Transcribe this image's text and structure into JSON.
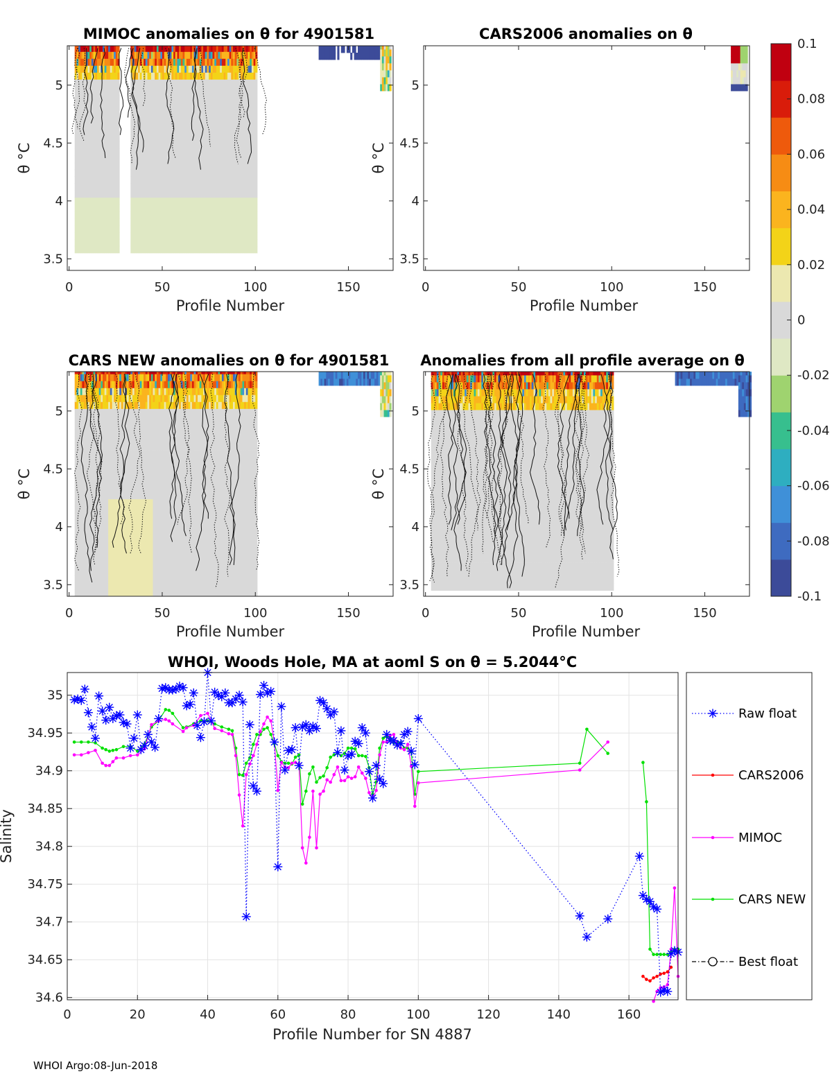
{
  "colors": {
    "raw_float": "#0000ff",
    "cars2006": "#ff0000",
    "mimoc": "#ff00ff",
    "cars_new": "#00e000",
    "best_float": "#000000",
    "colormap": [
      "#3c4b99",
      "#3e6bc0",
      "#3f90d8",
      "#2eaec0",
      "#37bf8e",
      "#9fd36f",
      "#dfe8c4",
      "#d9d9d9",
      "#ece8b0",
      "#f3d318",
      "#fbb41e",
      "#f68c14",
      "#ee5a0c",
      "#d91c0a",
      "#c00010"
    ]
  },
  "panels": [
    {
      "title": "MIMOC anomalies on θ  for 4901581",
      "xlabel": "Profile Number",
      "ylabel": "θ °C",
      "xticks": [
        "0",
        "50",
        "100",
        "150"
      ],
      "yticks": [
        "3.5",
        "4",
        "4.5",
        "5"
      ]
    },
    {
      "title": "CARS2006 anomalies on θ",
      "xlabel": "Profile Number",
      "ylabel": "θ °C",
      "xticks": [
        "0",
        "50",
        "100",
        "150"
      ],
      "yticks": [
        "3.5",
        "4",
        "4.5",
        "5"
      ]
    },
    {
      "title": "CARS NEW anomalies on θ for 4901581",
      "xlabel": "Profile Number",
      "ylabel": "θ °C",
      "xticks": [
        "0",
        "50",
        "100",
        "150"
      ],
      "yticks": [
        "3.5",
        "4",
        "4.5",
        "5"
      ]
    },
    {
      "title": "Anomalies from all profile average on θ",
      "xlabel": "Profile Number",
      "ylabel": "θ °C",
      "xticks": [
        "0",
        "50",
        "100",
        "150"
      ],
      "yticks": [
        "3.5",
        "4",
        "4.5",
        "5"
      ]
    }
  ],
  "colorbar": {
    "ticks": [
      "0.1",
      "0.08",
      "0.06",
      "0.04",
      "0.02",
      "0",
      "-0.02",
      "-0.04",
      "-0.06",
      "-0.08",
      "-0.1"
    ],
    "range": [
      -0.1,
      0.1
    ]
  },
  "footer": "WHOI Argo:08-Jun-2018",
  "chart_data": {
    "type": "line",
    "title_main": "WHOI, Woods Hole, MA at aoml S on θ = 5.2044",
    "title_unit": "°C",
    "xlabel": "Profile Number for SN 4887",
    "ylabel": "Salinity",
    "xlim": [
      0,
      174
    ],
    "ylim": [
      34.597,
      35.03
    ],
    "xticks": [
      0,
      20,
      40,
      60,
      80,
      100,
      120,
      140,
      160
    ],
    "yticks": [
      34.6,
      34.65,
      34.7,
      34.75,
      34.8,
      34.85,
      34.9,
      34.95,
      35
    ],
    "ytick_labels": [
      "34.6",
      "34.65",
      "34.7",
      "34.75",
      "34.8",
      "34.85",
      "34.9",
      "34.95",
      "35"
    ],
    "grid": true,
    "legend_position": "right-outside",
    "series": [
      {
        "name": "Raw float",
        "style": "dotted-star",
        "x": [
          2,
          3,
          4,
          5,
          6,
          7,
          8,
          9,
          10,
          11,
          12,
          13,
          14,
          15,
          16,
          17,
          18,
          19,
          20,
          21,
          22,
          23,
          24,
          25,
          26,
          27,
          28,
          29,
          30,
          31,
          32,
          33,
          34,
          35,
          36,
          37,
          38,
          39,
          40,
          41,
          42,
          43,
          44,
          45,
          46,
          47,
          48,
          49,
          50,
          51,
          52,
          53,
          54,
          55,
          56,
          57,
          58,
          59,
          60,
          61,
          62,
          63,
          64,
          65,
          66,
          67,
          68,
          69,
          70,
          71,
          72,
          73,
          74,
          75,
          76,
          77,
          78,
          79,
          80,
          81,
          82,
          83,
          84,
          85,
          86,
          87,
          88,
          89,
          90,
          91,
          92,
          93,
          94,
          95,
          96,
          97,
          98,
          99,
          100,
          146,
          148,
          154,
          163,
          164,
          165,
          166,
          167,
          168,
          169,
          170,
          171,
          172,
          173,
          174
        ],
        "y": [
          34.994,
          34.995,
          34.993,
          35.008,
          34.977,
          34.958,
          34.943,
          34.999,
          34.979,
          34.967,
          34.984,
          34.969,
          34.973,
          34.974,
          34.964,
          34.962,
          34.93,
          34.943,
          34.974,
          34.928,
          34.933,
          34.948,
          34.938,
          34.931,
          34.969,
          35.009,
          35.01,
          35.007,
          35.007,
          35.008,
          35.012,
          35.01,
          34.986,
          34.988,
          35.003,
          34.96,
          34.944,
          34.965,
          35.03,
          34.966,
          35.004,
          35.0,
          34.998,
          35.003,
          34.99,
          34.99,
          34.995,
          35.0,
          34.991,
          34.707,
          34.961,
          34.88,
          34.873,
          35.001,
          35.013,
          35.003,
          35.005,
          34.938,
          34.773,
          34.985,
          34.901,
          34.927,
          34.928,
          34.957,
          34.907,
          34.958,
          34.961,
          34.953,
          34.959,
          34.956,
          34.993,
          34.99,
          34.982,
          34.974,
          34.978,
          34.924,
          34.953,
          34.901,
          34.92,
          34.922,
          34.939,
          34.936,
          34.957,
          34.95,
          34.899,
          34.864,
          34.907,
          34.889,
          34.883,
          34.948,
          34.94,
          34.94,
          34.934,
          34.936,
          34.948,
          34.952,
          34.926,
          34.908,
          34.969,
          34.708,
          34.68,
          34.704,
          34.787,
          34.735,
          34.73,
          34.727,
          34.72,
          34.717,
          34.607,
          34.61,
          34.608,
          34.658,
          34.662,
          34.66
        ]
      },
      {
        "name": "CARS2006",
        "style": "solid-dot",
        "x": [
          164,
          165,
          166,
          167,
          168,
          169,
          170,
          171,
          172
        ],
        "y": [
          34.628,
          34.624,
          34.622,
          34.626,
          34.628,
          34.631,
          34.632,
          34.634,
          34.64
        ]
      },
      {
        "name": "MIMOC",
        "style": "solid-dot",
        "x": [
          2,
          4,
          6,
          8,
          10,
          11,
          12,
          13,
          14,
          16,
          18,
          20,
          22,
          24,
          26,
          28,
          29,
          30,
          33,
          34,
          36,
          38,
          40,
          42,
          44,
          46,
          47,
          48,
          49,
          50,
          51,
          52,
          53,
          54,
          55,
          56,
          57,
          58,
          59,
          60,
          61,
          62,
          63,
          64,
          65,
          66,
          67,
          68,
          69,
          70,
          71,
          72,
          73,
          74,
          75,
          76,
          77,
          78,
          79,
          80,
          81,
          82,
          83,
          84,
          85,
          86,
          87,
          88,
          89,
          90,
          91,
          92,
          93,
          94,
          95,
          96,
          97,
          98,
          99,
          100,
          146,
          154,
          null,
          167,
          168,
          169,
          170,
          171,
          172,
          173,
          174
        ],
        "y": [
          34.921,
          34.921,
          34.924,
          34.927,
          34.91,
          34.907,
          34.907,
          34.912,
          34.917,
          34.917,
          34.92,
          34.921,
          34.929,
          34.961,
          34.966,
          34.968,
          34.966,
          34.962,
          34.952,
          34.957,
          34.96,
          34.973,
          34.976,
          34.956,
          34.953,
          34.949,
          34.948,
          34.92,
          34.868,
          34.827,
          34.895,
          34.909,
          34.92,
          34.935,
          34.952,
          34.962,
          34.971,
          34.966,
          34.938,
          34.874,
          34.911,
          34.905,
          34.904,
          34.91,
          34.911,
          34.909,
          34.798,
          34.778,
          34.812,
          34.873,
          34.798,
          34.869,
          34.873,
          34.888,
          34.885,
          34.895,
          34.905,
          34.887,
          34.887,
          34.892,
          34.89,
          34.892,
          34.905,
          34.897,
          34.89,
          34.871,
          34.864,
          34.874,
          34.921,
          34.938,
          34.938,
          34.947,
          34.948,
          34.935,
          34.93,
          34.928,
          34.935,
          34.906,
          34.853,
          34.884,
          34.901,
          34.938,
          null,
          34.595,
          34.608,
          34.613,
          34.614,
          34.617,
          34.664,
          34.745,
          34.628
        ]
      },
      {
        "name": "CARS NEW",
        "style": "solid-dot",
        "x": [
          2,
          4,
          6,
          8,
          10,
          11,
          12,
          13,
          14,
          16,
          18,
          20,
          22,
          24,
          26,
          28,
          29,
          30,
          33,
          34,
          36,
          38,
          40,
          42,
          44,
          46,
          47,
          48,
          49,
          50,
          51,
          52,
          53,
          54,
          55,
          56,
          57,
          58,
          59,
          60,
          61,
          62,
          63,
          64,
          65,
          66,
          67,
          68,
          69,
          70,
          71,
          72,
          73,
          74,
          75,
          76,
          77,
          78,
          79,
          80,
          81,
          82,
          83,
          84,
          85,
          86,
          87,
          88,
          89,
          90,
          91,
          92,
          93,
          94,
          95,
          96,
          97,
          98,
          99,
          100,
          146,
          148,
          154,
          null,
          164,
          165,
          166,
          167,
          168,
          169,
          170,
          171,
          172,
          173,
          174
        ],
        "y": [
          34.938,
          34.938,
          34.938,
          34.937,
          34.93,
          34.928,
          34.926,
          34.927,
          34.928,
          34.932,
          34.932,
          34.926,
          34.935,
          34.958,
          34.966,
          34.981,
          34.98,
          34.976,
          34.957,
          34.958,
          34.962,
          34.966,
          34.966,
          34.962,
          34.958,
          34.955,
          34.953,
          34.93,
          34.895,
          34.894,
          34.91,
          34.917,
          34.935,
          34.948,
          34.948,
          34.955,
          34.957,
          34.948,
          34.936,
          34.92,
          34.912,
          34.91,
          34.91,
          34.909,
          34.918,
          34.921,
          34.856,
          34.873,
          34.896,
          34.905,
          34.885,
          34.891,
          34.893,
          34.904,
          34.918,
          34.921,
          34.923,
          34.92,
          34.923,
          34.93,
          34.93,
          34.929,
          34.92,
          34.92,
          34.919,
          34.904,
          34.869,
          34.885,
          34.93,
          34.943,
          34.945,
          34.943,
          34.937,
          34.938,
          34.937,
          34.93,
          34.93,
          34.925,
          34.869,
          34.899,
          34.91,
          34.955,
          34.923,
          null,
          34.911,
          34.859,
          34.664,
          34.657,
          34.657,
          34.657,
          34.657,
          34.657,
          34.66,
          34.664,
          34.664
        ]
      },
      {
        "name": "Best float",
        "style": "dashdot-circle",
        "x": [],
        "y": []
      }
    ]
  }
}
